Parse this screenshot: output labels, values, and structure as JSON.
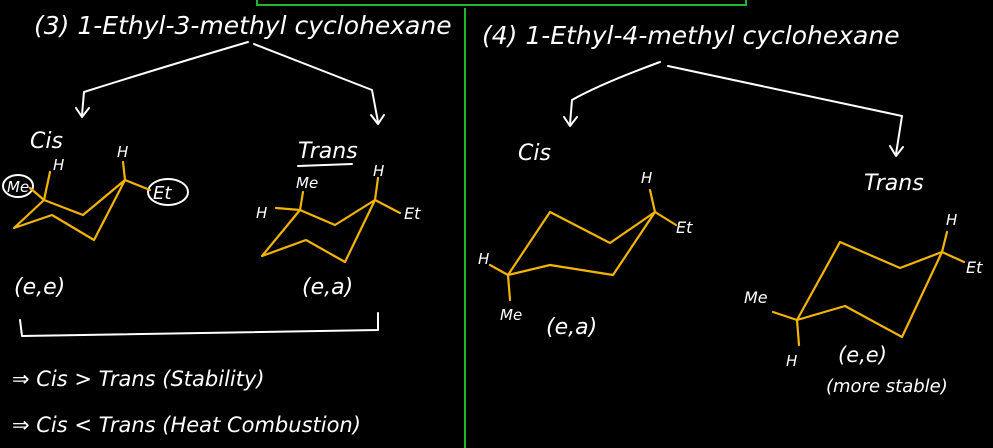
{
  "left_panel": {
    "heading": "(3) 1-Ethyl-3-methyl cyclohexane",
    "cis_label": "Cis",
    "trans_label": "Trans",
    "cis_atoms": {
      "h1": "H",
      "h2": "H",
      "me": "Me",
      "et": "Et"
    },
    "trans_atoms": {
      "me": "Me",
      "h_left": "H",
      "h_top": "H",
      "et": "Et"
    },
    "cis_config": "(e,e)",
    "trans_config": "(e,a)",
    "conclusion_1": "⇒ Cis > Trans (Stability)",
    "conclusion_2": "⇒ Cis < Trans (Heat Combustion)"
  },
  "right_panel": {
    "heading": "(4) 1-Ethyl-4-methyl cyclohexane",
    "cis_label": "Cis",
    "trans_label": "Trans",
    "cis_atoms": {
      "h_top": "H",
      "et": "Et",
      "h_left": "H",
      "me": "Me"
    },
    "trans_atoms": {
      "h_top": "H",
      "et": "Et",
      "me": "Me",
      "h_bottom": "H"
    },
    "cis_config": "(e,a)",
    "trans_config": "(e,e)",
    "trans_note": "(more stable)"
  },
  "colors": {
    "background": "#000000",
    "ink": "#ffffff",
    "structure": "#f3b400",
    "divider": "#1fb52e"
  }
}
